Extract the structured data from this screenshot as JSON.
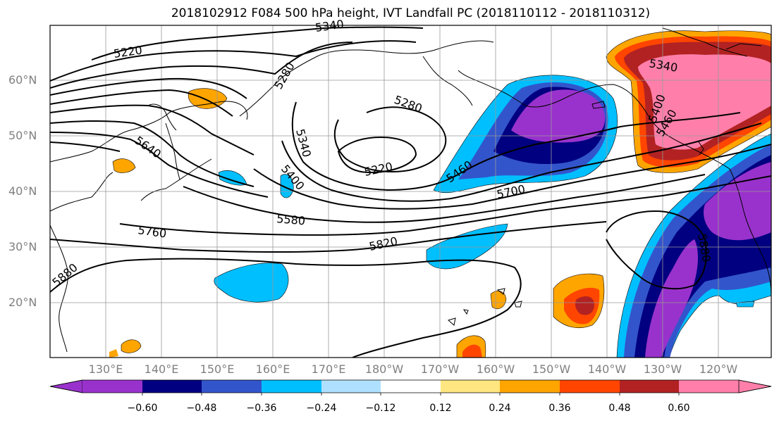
{
  "title": "2018102912 F084 500 hPa height, IVT Landfall PC (2018110112 - 2018110312)",
  "lat_labels": [
    {
      "text": "60°N",
      "lat": 60
    },
    {
      "text": "50°N",
      "lat": 50
    },
    {
      "text": "40°N",
      "lat": 40
    },
    {
      "text": "30°N",
      "lat": 30
    },
    {
      "text": "20°N",
      "lat": 20
    }
  ],
  "lon_labels": [
    "130°E",
    "140°E",
    "150°E",
    "160°E",
    "170°E",
    "180°W",
    "170°W",
    "160°W",
    "150°W",
    "140°W",
    "130°W",
    "120°W"
  ],
  "contour_labels": [
    "5220",
    "5280",
    "5340",
    "5400",
    "5460",
    "5580",
    "5640",
    "5700",
    "5760",
    "5820",
    "5880"
  ],
  "colorbar": {
    "colors": [
      "#9932CC",
      "#000080",
      "#3355CC",
      "#00BFFF",
      "#B0E0FF",
      "#FFFFFF",
      "#FFE680",
      "#FFA500",
      "#FF4500",
      "#B22222",
      "#FF7FAA"
    ],
    "tick_labels": [
      "−0.60",
      "−0.48",
      "−0.36",
      "−0.24",
      "−0.12",
      "0.12",
      "0.24",
      "0.36",
      "0.48",
      "0.60"
    ]
  }
}
